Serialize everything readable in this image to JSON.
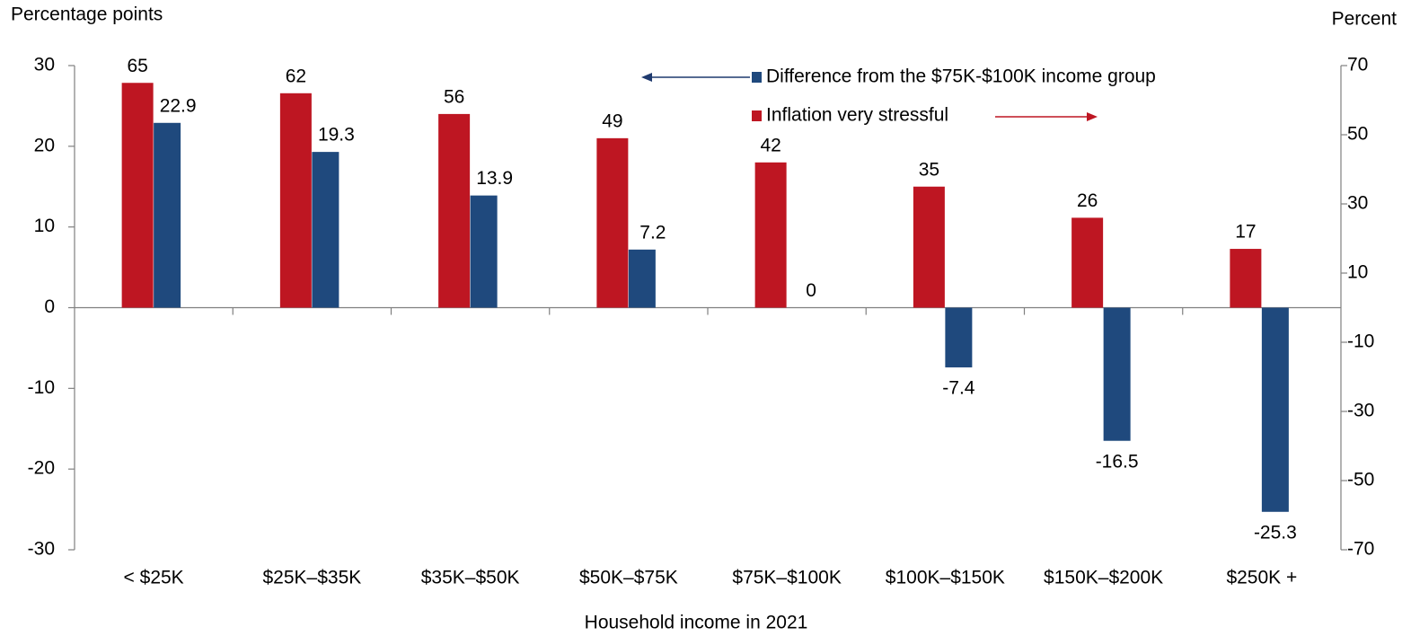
{
  "chart_data": {
    "type": "bar",
    "ylabel": "Percentage points",
    "y2label": "Percent",
    "xlabel": "Household income in 2021",
    "categories": [
      "< $25K",
      "$25K–$35K",
      "$35K–$50K",
      "$50K–$75K",
      "$75K–$100K",
      "$100K–$150K",
      "$150K–$200K",
      "$250K +"
    ],
    "series": [
      {
        "name": "Inflation very stressful",
        "color": "#be1622",
        "axis": "y2",
        "values": [
          65,
          62,
          56,
          49,
          42,
          35,
          26,
          17
        ]
      },
      {
        "name": "Difference from the $75K-$100K income group",
        "color": "#1f497d",
        "axis": "y",
        "values": [
          22.9,
          19.3,
          13.9,
          7.2,
          0,
          -7.4,
          -16.5,
          -25.3
        ]
      }
    ],
    "ylim": [
      -30,
      30
    ],
    "yticks": [
      -30,
      -20,
      -10,
      0,
      10,
      20,
      30
    ],
    "y2lim": [
      -70,
      70
    ],
    "y2ticks": [
      -70,
      -50,
      -30,
      -10,
      10,
      30,
      50,
      70
    ]
  }
}
